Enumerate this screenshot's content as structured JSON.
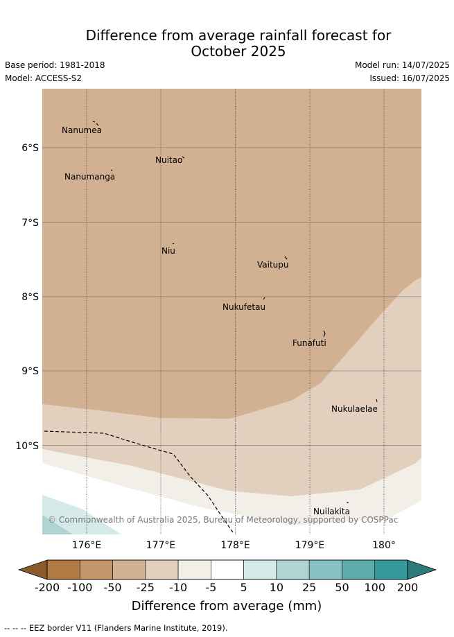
{
  "title": {
    "line1": "Difference from average rainfall forecast for",
    "line2": "October 2025"
  },
  "meta": {
    "base_period": "Base period: 1981-2018",
    "model": "Model: ACCESS-S2",
    "model_run": "Model run: 14/07/2025",
    "issued": "Issued: 16/07/2025"
  },
  "map": {
    "lat_labels": [
      "6°S",
      "7°S",
      "8°S",
      "9°S",
      "10°S"
    ],
    "lon_labels": [
      "176°E",
      "177°E",
      "178°E",
      "179°E",
      "180°"
    ],
    "places": [
      "Nanumea",
      "Nuitao",
      "Nanumanga",
      "Niu",
      "Vaitupu",
      "Nukufetau",
      "Funafuti",
      "Nukulaelae",
      "Nuilakita"
    ],
    "copyright": "© Commonwealth of Australia 2025, Bureau of Meteorology, supported by COSPPac"
  },
  "colorbar": {
    "ticks": [
      "-200",
      "-100",
      "-50",
      "-25",
      "-10",
      "-5",
      "5",
      "10",
      "25",
      "50",
      "100",
      "200"
    ],
    "colors": [
      "#8a5a2b",
      "#b07a44",
      "#c4966a",
      "#d2b193",
      "#e2cfbd",
      "#f2eee8",
      "#ffffff",
      "#d4e9e8",
      "#aed4d4",
      "#87c1c1",
      "#5eadad",
      "#359a9b",
      "#2d7a7a"
    ],
    "label": "Difference from average (mm)"
  },
  "footer": "-- -- -- EEZ border V11 (Flanders Marine Institute, 2019)."
}
